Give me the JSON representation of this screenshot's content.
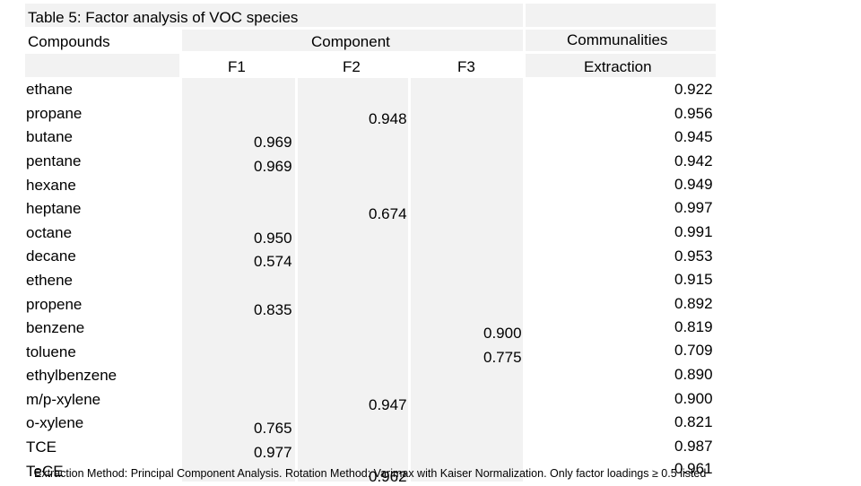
{
  "table": {
    "title": "Table 5: Factor analysis of VOC species",
    "header": {
      "compounds": "Compounds",
      "component": "Component",
      "communalities": "Communalities",
      "f1": "F1",
      "f2": "F2",
      "f3": "F3",
      "extraction": "Extraction"
    },
    "rows": [
      {
        "name": "ethane",
        "f1": "",
        "f2": "",
        "f3": "",
        "extraction": "0.922"
      },
      {
        "name": "propane",
        "f1": "",
        "f2": "0.948",
        "f3": "",
        "extraction": "0.956"
      },
      {
        "name": "butane",
        "f1": "0.969",
        "f2": "",
        "f3": "",
        "extraction": "0.945"
      },
      {
        "name": "pentane",
        "f1": "0.969",
        "f2": "",
        "f3": "",
        "extraction": "0.942"
      },
      {
        "name": "hexane",
        "f1": "",
        "f2": "",
        "f3": "",
        "extraction": "0.949"
      },
      {
        "name": "heptane",
        "f1": "",
        "f2": "0.674",
        "f3": "",
        "extraction": "0.997"
      },
      {
        "name": "octane",
        "f1": "0.950",
        "f2": "",
        "f3": "",
        "extraction": "0.991"
      },
      {
        "name": "decane",
        "f1": "0.574",
        "f2": "",
        "f3": "",
        "extraction": "0.953"
      },
      {
        "name": "ethene",
        "f1": "",
        "f2": "",
        "f3": "",
        "extraction": "0.915"
      },
      {
        "name": "propene",
        "f1": "0.835",
        "f2": "",
        "f3": "",
        "extraction": "0.892"
      },
      {
        "name": "benzene",
        "f1": "",
        "f2": "",
        "f3": "0.900",
        "extraction": "0.819"
      },
      {
        "name": "toluene",
        "f1": "",
        "f2": "",
        "f3": "0.775",
        "extraction": "0.709"
      },
      {
        "name": "ethylbenzene",
        "f1": "",
        "f2": "",
        "f3": "",
        "extraction": "0.890"
      },
      {
        "name": "m/p-xylene",
        "f1": "",
        "f2": "0.947",
        "f3": "",
        "extraction": "0.900"
      },
      {
        "name": "o-xylene",
        "f1": "0.765",
        "f2": "",
        "f3": "",
        "extraction": "0.821"
      },
      {
        "name": "TCE",
        "f1": "0.977",
        "f2": "",
        "f3": "",
        "extraction": "0.987"
      },
      {
        "name": "TeCE",
        "f1": "",
        "f2": "0.962",
        "f3": "",
        "extraction": "0.961"
      }
    ],
    "footnote": "Extraction Method: Principal Component Analysis.  Rotation Method: Varimax with Kaiser Normalization. Only factor loadings ≥ 0.5 listed"
  }
}
